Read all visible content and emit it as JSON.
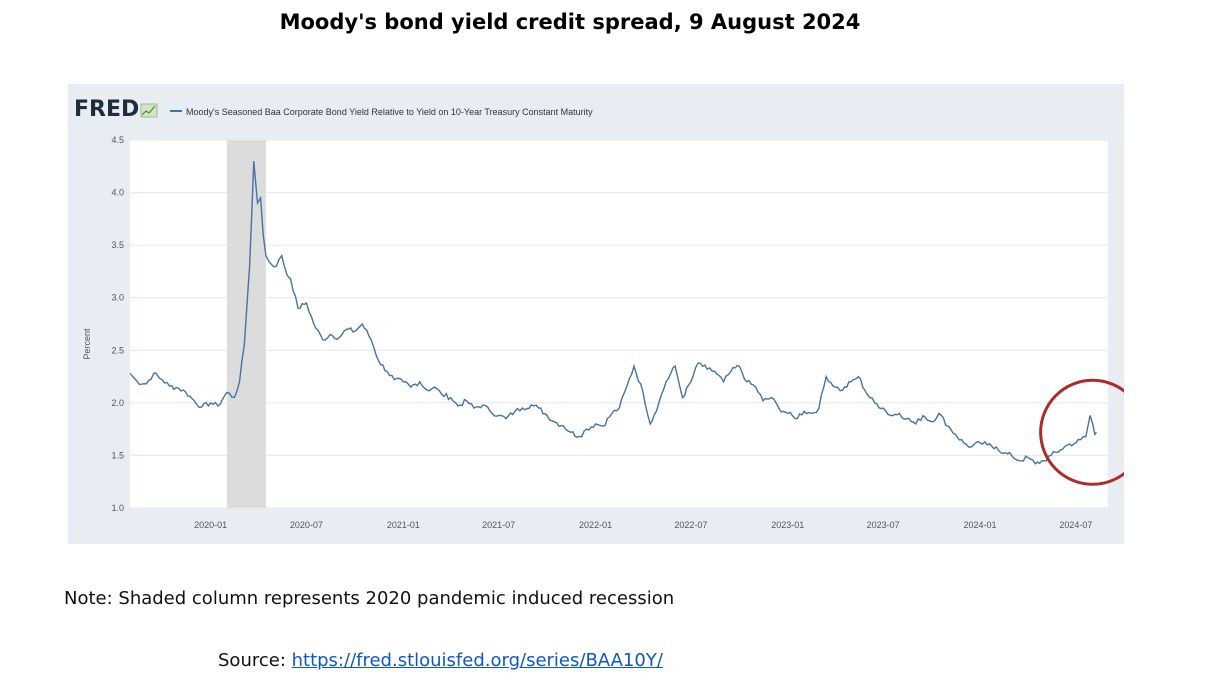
{
  "page": {
    "title": "Moody's bond yield credit spread, 9 August 2024",
    "note": "Note: Shaded column represents 2020 pandemic induced recession",
    "source_label": "Source: ",
    "source_url": "https://fred.stlouisfed.org/series/BAA10Y/"
  },
  "chart_data": {
    "type": "line",
    "logo": "FRED",
    "legend": "Moody's Seasoned Baa Corporate Bond Yield Relative to Yield on 10-Year Treasury Constant Maturity",
    "ylabel": "Percent",
    "ylim": [
      1.0,
      4.5
    ],
    "yticks": [
      "1.0",
      "1.5",
      "2.0",
      "2.5",
      "3.0",
      "3.5",
      "4.0",
      "4.5"
    ],
    "xlim": [
      "2019-08-01",
      "2024-08-31"
    ],
    "xticks": [
      "2020-01",
      "2020-07",
      "2021-01",
      "2021-07",
      "2022-01",
      "2022-07",
      "2023-01",
      "2023-07",
      "2024-01",
      "2024-07"
    ],
    "grid": true,
    "recession_shade": [
      "2020-02",
      "2020-04"
    ],
    "highlight_circle_around": "2024-06 to 2024-08",
    "line_color": "#4572a7",
    "series": [
      {
        "values": [
          [
            "2019-08-01",
            2.28
          ],
          [
            "2019-08-15",
            2.2
          ],
          [
            "2019-09-01",
            2.18
          ],
          [
            "2019-09-15",
            2.28
          ],
          [
            "2019-10-01",
            2.22
          ],
          [
            "2019-10-15",
            2.16
          ],
          [
            "2019-11-01",
            2.14
          ],
          [
            "2019-11-15",
            2.1
          ],
          [
            "2019-12-01",
            2.02
          ],
          [
            "2019-12-15",
            1.96
          ],
          [
            "2020-01-01",
            2.0
          ],
          [
            "2020-01-15",
            1.97
          ],
          [
            "2020-02-01",
            2.1
          ],
          [
            "2020-02-15",
            2.05
          ],
          [
            "2020-02-25",
            2.2
          ],
          [
            "2020-03-05",
            2.55
          ],
          [
            "2020-03-15",
            3.3
          ],
          [
            "2020-03-23",
            4.3
          ],
          [
            "2020-03-30",
            3.9
          ],
          [
            "2020-04-05",
            3.95
          ],
          [
            "2020-04-10",
            3.6
          ],
          [
            "2020-04-15",
            3.4
          ],
          [
            "2020-04-25",
            3.32
          ],
          [
            "2020-05-05",
            3.3
          ],
          [
            "2020-05-15",
            3.4
          ],
          [
            "2020-05-25",
            3.22
          ],
          [
            "2020-06-01",
            3.18
          ],
          [
            "2020-06-15",
            2.9
          ],
          [
            "2020-07-01",
            2.95
          ],
          [
            "2020-07-15",
            2.75
          ],
          [
            "2020-08-01",
            2.6
          ],
          [
            "2020-08-15",
            2.65
          ],
          [
            "2020-09-01",
            2.62
          ],
          [
            "2020-09-15",
            2.7
          ],
          [
            "2020-10-01",
            2.68
          ],
          [
            "2020-10-15",
            2.75
          ],
          [
            "2020-11-01",
            2.6
          ],
          [
            "2020-11-15",
            2.4
          ],
          [
            "2020-12-01",
            2.3
          ],
          [
            "2020-12-15",
            2.22
          ],
          [
            "2021-01-01",
            2.2
          ],
          [
            "2021-01-15",
            2.15
          ],
          [
            "2021-02-01",
            2.2
          ],
          [
            "2021-02-15",
            2.12
          ],
          [
            "2021-03-01",
            2.15
          ],
          [
            "2021-03-15",
            2.08
          ],
          [
            "2021-04-01",
            2.05
          ],
          [
            "2021-04-15",
            1.97
          ],
          [
            "2021-05-01",
            2.02
          ],
          [
            "2021-05-15",
            1.95
          ],
          [
            "2021-06-01",
            1.98
          ],
          [
            "2021-06-15",
            1.92
          ],
          [
            "2021-07-01",
            1.88
          ],
          [
            "2021-07-15",
            1.85
          ],
          [
            "2021-08-01",
            1.92
          ],
          [
            "2021-08-15",
            1.95
          ],
          [
            "2021-09-01",
            1.98
          ],
          [
            "2021-09-15",
            1.95
          ],
          [
            "2021-10-01",
            1.88
          ],
          [
            "2021-10-15",
            1.82
          ],
          [
            "2021-11-01",
            1.78
          ],
          [
            "2021-11-15",
            1.72
          ],
          [
            "2021-12-01",
            1.68
          ],
          [
            "2021-12-15",
            1.75
          ],
          [
            "2022-01-01",
            1.8
          ],
          [
            "2022-01-15",
            1.78
          ],
          [
            "2022-02-01",
            1.9
          ],
          [
            "2022-02-15",
            1.95
          ],
          [
            "2022-03-01",
            2.15
          ],
          [
            "2022-03-15",
            2.35
          ],
          [
            "2022-04-01",
            2.1
          ],
          [
            "2022-04-15",
            1.8
          ],
          [
            "2022-05-01",
            2.0
          ],
          [
            "2022-05-15",
            2.2
          ],
          [
            "2022-06-01",
            2.35
          ],
          [
            "2022-06-15",
            2.05
          ],
          [
            "2022-07-01",
            2.2
          ],
          [
            "2022-07-15",
            2.38
          ],
          [
            "2022-08-01",
            2.32
          ],
          [
            "2022-08-15",
            2.3
          ],
          [
            "2022-09-01",
            2.2
          ],
          [
            "2022-09-15",
            2.3
          ],
          [
            "2022-10-01",
            2.35
          ],
          [
            "2022-10-15",
            2.2
          ],
          [
            "2022-11-01",
            2.15
          ],
          [
            "2022-11-15",
            2.02
          ],
          [
            "2022-12-01",
            2.05
          ],
          [
            "2022-12-15",
            1.95
          ],
          [
            "2023-01-01",
            1.9
          ],
          [
            "2023-01-15",
            1.85
          ],
          [
            "2023-02-01",
            1.92
          ],
          [
            "2023-02-15",
            1.9
          ],
          [
            "2023-03-01",
            1.95
          ],
          [
            "2023-03-15",
            2.25
          ],
          [
            "2023-04-01",
            2.15
          ],
          [
            "2023-04-15",
            2.12
          ],
          [
            "2023-05-01",
            2.2
          ],
          [
            "2023-05-15",
            2.25
          ],
          [
            "2023-06-01",
            2.08
          ],
          [
            "2023-06-15",
            2.0
          ],
          [
            "2023-07-01",
            1.95
          ],
          [
            "2023-07-15",
            1.88
          ],
          [
            "2023-08-01",
            1.9
          ],
          [
            "2023-08-15",
            1.85
          ],
          [
            "2023-09-01",
            1.8
          ],
          [
            "2023-09-15",
            1.88
          ],
          [
            "2023-10-01",
            1.82
          ],
          [
            "2023-10-15",
            1.9
          ],
          [
            "2023-11-01",
            1.78
          ],
          [
            "2023-11-15",
            1.7
          ],
          [
            "2023-12-01",
            1.62
          ],
          [
            "2023-12-15",
            1.58
          ],
          [
            "2024-01-01",
            1.62
          ],
          [
            "2024-01-15",
            1.6
          ],
          [
            "2024-02-01",
            1.58
          ],
          [
            "2024-02-15",
            1.52
          ],
          [
            "2024-03-01",
            1.5
          ],
          [
            "2024-03-15",
            1.45
          ],
          [
            "2024-04-01",
            1.48
          ],
          [
            "2024-04-15",
            1.42
          ],
          [
            "2024-05-01",
            1.45
          ],
          [
            "2024-05-15",
            1.5
          ],
          [
            "2024-06-01",
            1.55
          ],
          [
            "2024-06-15",
            1.6
          ],
          [
            "2024-07-01",
            1.62
          ],
          [
            "2024-07-10",
            1.65
          ],
          [
            "2024-07-20",
            1.68
          ],
          [
            "2024-07-28",
            1.88
          ],
          [
            "2024-08-02",
            1.8
          ],
          [
            "2024-08-06",
            1.7
          ],
          [
            "2024-08-09",
            1.72
          ]
        ]
      }
    ]
  }
}
